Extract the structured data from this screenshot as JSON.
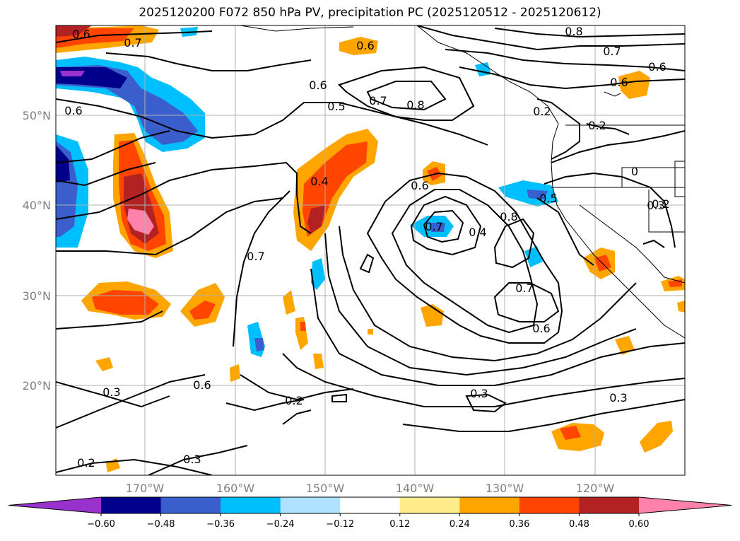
{
  "title": "2025120200 F072 850 hPa PV, precipitation PC (2025120512 - 2025120612)",
  "lat_ticks": [
    "50°N",
    "40°N",
    "30°N",
    "20°N"
  ],
  "lon_ticks": [
    "170°W",
    "160°W",
    "150°W",
    "140°W",
    "130°W",
    "120°W"
  ],
  "colorbar": {
    "ticks": [
      "−0.60",
      "−0.48",
      "−0.36",
      "−0.24",
      "−0.12",
      "0.12",
      "0.24",
      "0.36",
      "0.48",
      "0.60"
    ],
    "colors": [
      "#9932CC",
      "#00008B",
      "#3A5FCD",
      "#00BFFF",
      "#B0E2FF",
      "#FFFFFF",
      "#FFEC8B",
      "#FFA500",
      "#FF4500",
      "#B22222",
      "#FF82AB"
    ]
  },
  "contour_labels": [
    "0.6",
    "0.7",
    "0.6",
    "0.6",
    "0.5",
    "0.7",
    "0.8",
    "0.6",
    "0.8",
    "0.7",
    "0.6",
    "0.4",
    "0.6",
    "0.7",
    "0.4",
    "0.6",
    "0.8",
    "0.7",
    "0.5",
    "0.6",
    "0.7",
    "0.6",
    "0.3",
    "0.3",
    "0.2",
    "0.3",
    "0.2",
    "0.3",
    "0.2",
    "0.2",
    "0.2",
    "0.3",
    "0"
  ]
}
